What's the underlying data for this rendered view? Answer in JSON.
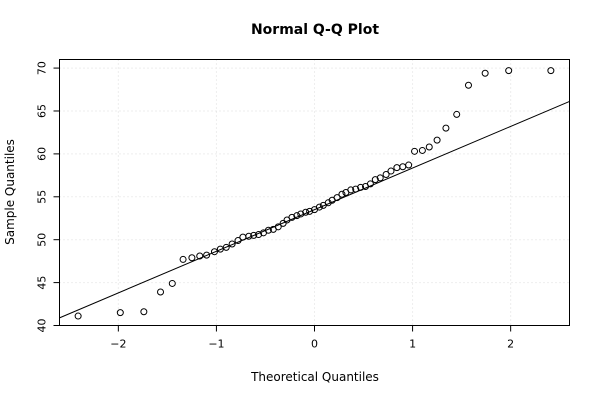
{
  "chart_data": {
    "type": "scatter",
    "title": "Normal Q-Q Plot",
    "xlabel": "Theoretical Quantiles",
    "ylabel": "Sample Quantiles",
    "xlim": [
      -2.6,
      2.6
    ],
    "ylim": [
      40,
      71
    ],
    "xticks": [
      -2,
      -1,
      0,
      1,
      2
    ],
    "xtick_labels": [
      "−2",
      "−1",
      "0",
      "1",
      "2"
    ],
    "yticks": [
      40,
      45,
      50,
      55,
      60,
      65,
      70
    ],
    "ytick_labels": [
      "40",
      "45",
      "50",
      "55",
      "60",
      "65",
      "70"
    ],
    "grid": true,
    "grid_color": "#dddddd",
    "point_color": "#000000",
    "line_color": "#000000",
    "points": {
      "x": [
        -2.41,
        -1.98,
        -1.74,
        -1.57,
        -1.45,
        -1.34,
        -1.25,
        -1.17,
        -1.1,
        -1.02,
        -0.96,
        -0.9,
        -0.84,
        -0.78,
        -0.73,
        -0.67,
        -0.62,
        -0.57,
        -0.52,
        -0.47,
        -0.42,
        -0.37,
        -0.32,
        -0.28,
        -0.23,
        -0.18,
        -0.14,
        -0.09,
        -0.05,
        0.0,
        0.05,
        0.09,
        0.14,
        0.18,
        0.23,
        0.28,
        0.32,
        0.37,
        0.42,
        0.47,
        0.52,
        0.57,
        0.62,
        0.67,
        0.73,
        0.78,
        0.84,
        0.9,
        0.96,
        1.02,
        1.1,
        1.17,
        1.25,
        1.34,
        1.45,
        1.57,
        1.74,
        1.98,
        2.41
      ],
      "y": [
        41.1,
        41.5,
        41.6,
        43.9,
        44.9,
        47.7,
        47.9,
        48.1,
        48.2,
        48.6,
        48.9,
        49.1,
        49.5,
        49.9,
        50.3,
        50.4,
        50.5,
        50.6,
        50.8,
        51.1,
        51.2,
        51.5,
        51.9,
        52.3,
        52.6,
        52.8,
        53.0,
        53.2,
        53.3,
        53.5,
        53.8,
        54.0,
        54.3,
        54.6,
        54.9,
        55.3,
        55.5,
        55.8,
        55.9,
        56.1,
        56.2,
        56.5,
        57.0,
        57.2,
        57.6,
        58.0,
        58.4,
        58.5,
        58.7,
        60.3,
        60.4,
        60.8,
        61.6,
        63.0,
        64.6,
        68.0,
        69.4,
        69.7,
        69.7
      ]
    },
    "reference_line": {
      "intercept": 53.5,
      "slope": 4.85
    }
  }
}
